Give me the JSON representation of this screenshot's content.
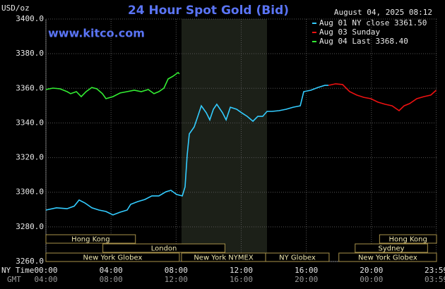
{
  "chart_data": {
    "type": "line",
    "title": "24 Hour Spot Gold (Bid)",
    "y_label": "USD/oz",
    "watermark": "www.kitco.com",
    "timestamp": "August 04, 2025 08:12",
    "x_row_label": "NY Time",
    "x2_row_label": "GMT",
    "xlim": [
      0,
      24
    ],
    "xticks": [
      {
        "value": 0,
        "label": "00:00"
      },
      {
        "value": 4,
        "label": "04:00"
      },
      {
        "value": 8,
        "label": "08:00"
      },
      {
        "value": 12,
        "label": "12:00"
      },
      {
        "value": 16,
        "label": "16:00"
      },
      {
        "value": 20,
        "label": "20:00"
      },
      {
        "value": 23.98,
        "label": "23:59"
      }
    ],
    "gmt_labels": [
      "04:00",
      "08:00",
      "12:00",
      "16:00",
      "20:00",
      "00:00",
      "03:59"
    ],
    "ylim": [
      3260,
      3400
    ],
    "yticks": [
      {
        "value": 3260,
        "label": "3260.0"
      },
      {
        "value": 3280,
        "label": "3280.0"
      },
      {
        "value": 3300,
        "label": "3300.0"
      },
      {
        "value": 3320,
        "label": "3320.0"
      },
      {
        "value": 3340,
        "label": "3340.0"
      },
      {
        "value": 3360,
        "label": "3360.0"
      },
      {
        "value": 3380,
        "label": "3380.0"
      },
      {
        "value": 3400,
        "label": "3400.0"
      }
    ],
    "grid": true,
    "legend": "top-right",
    "series": [
      {
        "name": "Aug 01 NY close 3361.50",
        "color": "#33ccff",
        "x": [
          0,
          0.65,
          1.3,
          1.74,
          2.04,
          2.39,
          2.82,
          3.26,
          3.69,
          4.12,
          4.56,
          4.99,
          5.21,
          5.64,
          6.08,
          6.51,
          6.94,
          7.38,
          7.68,
          8.03,
          8.38,
          8.55,
          8.68,
          8.81,
          9.11,
          9.33,
          9.55,
          9.85,
          10.07,
          10.29,
          10.5,
          10.85,
          11.07,
          11.33,
          11.72,
          12.02,
          12.37,
          12.72,
          13.02,
          13.32,
          13.59,
          13.89,
          14.32,
          14.76,
          15.19,
          15.63,
          15.84,
          16.28,
          16.71,
          17.14,
          17.36
        ],
        "values": [
          3289.7,
          3291,
          3290.5,
          3292,
          3295.5,
          3293.8,
          3291,
          3289.7,
          3288.9,
          3286.9,
          3288.5,
          3289.7,
          3293,
          3294.6,
          3295.8,
          3297.9,
          3297.9,
          3300.3,
          3301.1,
          3298.7,
          3297.9,
          3303.1,
          3321.5,
          3333.7,
          3337.7,
          3343.8,
          3349.9,
          3345.9,
          3341.8,
          3347.9,
          3350.8,
          3345.9,
          3341.8,
          3349.1,
          3347.9,
          3345.9,
          3343.8,
          3341,
          3343.8,
          3343.8,
          3346.7,
          3346.7,
          3347.1,
          3347.9,
          3349.1,
          3349.9,
          3358.1,
          3358.9,
          3360.5,
          3361.7,
          3361.7
        ]
      },
      {
        "name": "Aug 03 Sunday",
        "color": "#ee1111",
        "x": [
          17.36,
          17.8,
          18.23,
          18.66,
          19.1,
          19.53,
          19.97,
          20.4,
          20.83,
          21.27,
          21.7,
          22.01,
          22.35,
          22.79,
          23.22,
          23.65,
          23.98
        ],
        "values": [
          3361.7,
          3362.6,
          3362.2,
          3358.1,
          3356.1,
          3354.8,
          3354,
          3352,
          3350.8,
          3349.9,
          3347.1,
          3349.9,
          3351.2,
          3354,
          3355.2,
          3356.1,
          3358.9
        ]
      },
      {
        "name": "Aug 04 Last 3368.40",
        "color": "#33ee33",
        "x": [
          0,
          0.43,
          0.87,
          1.3,
          1.52,
          1.87,
          2.17,
          2.47,
          2.82,
          3.13,
          3.47,
          3.69,
          4.12,
          4.56,
          4.99,
          5.43,
          5.86,
          6.29,
          6.64,
          6.94,
          7.25,
          7.51,
          7.81,
          8.12,
          8.2
        ],
        "values": [
          3359.3,
          3360.1,
          3359.7,
          3358.1,
          3356.9,
          3358.1,
          3355.2,
          3358.1,
          3360.5,
          3359.7,
          3356.9,
          3354,
          3355.2,
          3357.3,
          3358.1,
          3358.9,
          3358.1,
          3359.3,
          3356.9,
          3358.1,
          3360.1,
          3365.4,
          3367,
          3369.1,
          3368.3
        ]
      }
    ],
    "sessions": [
      {
        "label": "New York Globex",
        "start": 0,
        "end": 8.2
      },
      {
        "label": "New York NYMEX",
        "start": 8.33,
        "end": 13.5
      },
      {
        "label": "NY Globex",
        "start": 13.5,
        "end": 17.4
      },
      {
        "label": "New York Globex",
        "start": 18,
        "end": 24
      },
      {
        "label": "London",
        "start": 3.5,
        "end": 11
      },
      {
        "label": "Sydney",
        "start": 19,
        "end": 23.45
      },
      {
        "label": "Hong Kong",
        "start": 0,
        "end": 5.5
      },
      {
        "label": "Hong Kong",
        "start": 20.5,
        "end": 24
      }
    ]
  }
}
